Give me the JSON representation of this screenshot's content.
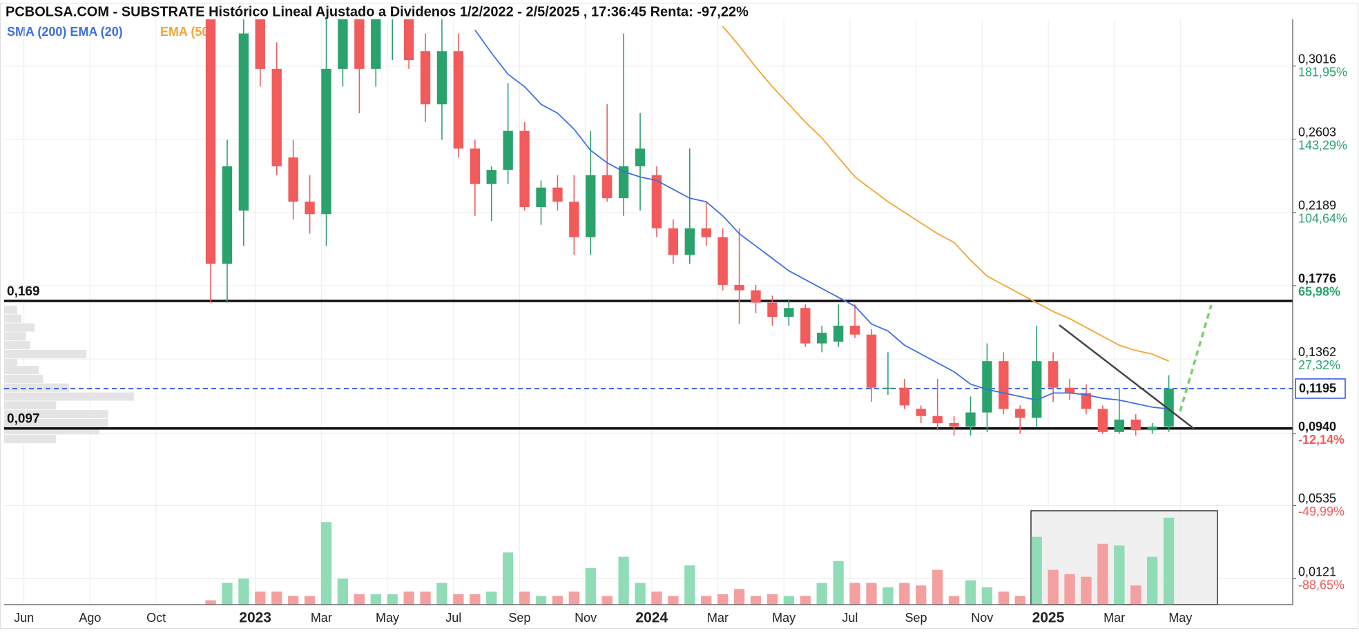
{
  "chart_data": {
    "type": "candlestick",
    "title": "PCBOLSA.COM - SUBSTRATE Histórico Lineal Ajustado a Dividenos 1/2/2022 - 2/5/2025 , 17:36:45 Renta: -97,22%",
    "categories": [
      "Jun",
      null,
      null,
      null,
      "Ago",
      null,
      null,
      null,
      "Oct",
      null,
      null,
      null,
      null,
      null,
      "2023",
      null,
      null,
      null,
      "Mar",
      null,
      null,
      null,
      "May",
      null,
      null,
      null,
      "Jul",
      null,
      null,
      null,
      "Sep",
      null,
      null,
      null,
      "Nov",
      null,
      null,
      null,
      "2024",
      null,
      null,
      null,
      "Mar",
      null,
      null,
      null,
      "May",
      null,
      null,
      null,
      "Jul",
      null,
      null,
      null,
      "Sep",
      null,
      null,
      null,
      "Nov",
      null,
      null,
      null,
      "2025",
      null,
      null,
      null,
      "Mar",
      null,
      null,
      null,
      "May",
      null,
      null,
      null,
      null,
      null,
      null,
      null
    ],
    "open": [
      null,
      null,
      null,
      null,
      null,
      null,
      null,
      null,
      null,
      null,
      null,
      null,
      0.33,
      0.19,
      0.22,
      0.33,
      0.3,
      0.25,
      0.225,
      0.218,
      0.3,
      0.34,
      0.3,
      0.33,
      0.33,
      0.31,
      0.28,
      0.31,
      0.255,
      0.235,
      0.243,
      0.265,
      0.222,
      0.233,
      0.225,
      0.205,
      0.24,
      0.227,
      0.245,
      0.24,
      0.21,
      0.195,
      0.21,
      0.205,
      0.178,
      0.175,
      0.168,
      0.16,
      0.165,
      0.145,
      0.146,
      0.155,
      0.15,
      0.12,
      0.12,
      0.108,
      0.104,
      0.1,
      0.098,
      0.106,
      0.135,
      0.108,
      0.103,
      0.135,
      0.12,
      0.117,
      0.108,
      0.095,
      0.102,
      0.096,
      0.098,
      null,
      null,
      null,
      null,
      null,
      null,
      null
    ],
    "high": [
      null,
      null,
      null,
      null,
      null,
      null,
      null,
      null,
      null,
      null,
      null,
      null,
      0.34,
      0.26,
      0.34,
      0.35,
      0.315,
      0.26,
      0.24,
      0.33,
      0.36,
      0.35,
      0.35,
      0.35,
      0.345,
      0.32,
      0.33,
      0.32,
      0.26,
      0.245,
      0.292,
      0.27,
      0.237,
      0.24,
      0.24,
      0.265,
      0.28,
      0.32,
      0.275,
      0.245,
      0.215,
      0.255,
      0.225,
      0.21,
      0.21,
      0.178,
      0.172,
      0.17,
      0.167,
      0.155,
      0.167,
      0.167,
      0.153,
      0.14,
      0.125,
      0.11,
      0.125,
      0.104,
      0.115,
      0.145,
      0.14,
      0.11,
      0.155,
      0.14,
      0.125,
      0.122,
      0.11,
      0.12,
      0.105,
      0.1,
      0.127,
      null,
      null,
      null,
      null,
      null,
      null,
      null
    ],
    "low": [
      null,
      null,
      null,
      null,
      null,
      null,
      null,
      null,
      null,
      null,
      null,
      null,
      0.168,
      0.168,
      0.2,
      0.29,
      0.24,
      0.215,
      0.207,
      0.2,
      0.29,
      0.275,
      0.29,
      0.305,
      0.3,
      0.27,
      0.26,
      0.25,
      0.217,
      0.214,
      0.235,
      0.22,
      0.212,
      0.22,
      0.195,
      0.195,
      0.225,
      0.217,
      0.22,
      0.205,
      0.19,
      0.19,
      0.2,
      0.175,
      0.156,
      0.162,
      0.155,
      0.155,
      0.143,
      0.14,
      0.143,
      0.148,
      0.112,
      0.116,
      0.108,
      0.1,
      0.096,
      0.093,
      0.093,
      0.095,
      0.105,
      0.094,
      0.098,
      0.112,
      0.113,
      0.105,
      0.094,
      0.094,
      0.093,
      0.094,
      0.095,
      null,
      null,
      null,
      null,
      null,
      null,
      null
    ],
    "close": [
      null,
      null,
      null,
      null,
      null,
      null,
      null,
      null,
      null,
      null,
      null,
      null,
      0.19,
      0.245,
      0.32,
      0.3,
      0.245,
      0.225,
      0.218,
      0.3,
      0.34,
      0.3,
      0.33,
      0.33,
      0.305,
      0.28,
      0.31,
      0.255,
      0.235,
      0.243,
      0.265,
      0.222,
      0.233,
      0.225,
      0.205,
      0.24,
      0.227,
      0.245,
      0.255,
      0.21,
      0.195,
      0.21,
      0.205,
      0.178,
      0.175,
      0.168,
      0.16,
      0.165,
      0.145,
      0.151,
      0.155,
      0.15,
      0.12,
      0.12,
      0.11,
      0.104,
      0.1,
      0.098,
      0.106,
      0.135,
      0.108,
      0.103,
      0.135,
      0.12,
      0.117,
      0.108,
      0.095,
      0.102,
      0.096,
      0.098,
      0.1195,
      null,
      null,
      null,
      null,
      null,
      null,
      null
    ],
    "volume": [
      null,
      null,
      null,
      null,
      null,
      null,
      null,
      null,
      null,
      null,
      null,
      null,
      5,
      25,
      30,
      15,
      15,
      10,
      10,
      95,
      30,
      12,
      12,
      12,
      15,
      15,
      25,
      12,
      12,
      15,
      60,
      15,
      10,
      10,
      15,
      42,
      10,
      55,
      25,
      15,
      10,
      45,
      10,
      12,
      18,
      10,
      12,
      10,
      10,
      25,
      50,
      25,
      25,
      20,
      25,
      22,
      40,
      10,
      28,
      20,
      15,
      10,
      78,
      40,
      35,
      32,
      70,
      68,
      22,
      55,
      100,
      null,
      null,
      null,
      null,
      null,
      null,
      null
    ],
    "volume_ylim": [
      0,
      100
    ],
    "up_color": "#2aa26c",
    "down_color": "#f25b5b",
    "volume_up_color": "#8fdcb6",
    "volume_down_color": "#f4a0a0",
    "series": [
      {
        "name": "SMA (200) EMA (20)",
        "color": "#3b6fe6",
        "values": [
          null,
          null,
          null,
          null,
          null,
          null,
          null,
          null,
          null,
          null,
          null,
          null,
          null,
          null,
          null,
          null,
          null,
          null,
          null,
          null,
          null,
          null,
          null,
          null,
          null,
          null,
          null,
          null,
          0.322,
          0.309,
          0.297,
          0.29,
          0.28,
          0.275,
          0.266,
          0.254,
          0.247,
          0.242,
          0.239,
          0.237,
          0.232,
          0.227,
          0.225,
          0.217,
          0.207,
          0.2,
          0.193,
          0.186,
          0.181,
          0.176,
          0.171,
          0.166,
          0.156,
          0.152,
          0.144,
          0.139,
          0.134,
          0.129,
          0.122,
          0.119,
          0.117,
          0.115,
          0.113,
          0.117,
          0.117,
          0.116,
          0.114,
          0.113,
          0.111,
          0.109,
          0.108,
          null,
          null,
          null,
          null,
          null,
          null,
          null
        ]
      },
      {
        "name": "EMA (50)",
        "color": "#f5a232",
        "values": [
          null,
          null,
          null,
          null,
          null,
          null,
          null,
          null,
          null,
          null,
          null,
          null,
          null,
          null,
          null,
          null,
          null,
          null,
          null,
          null,
          null,
          null,
          null,
          null,
          null,
          null,
          null,
          null,
          null,
          null,
          null,
          null,
          null,
          null,
          null,
          null,
          null,
          null,
          null,
          null,
          null,
          null,
          null,
          0.324,
          0.313,
          0.301,
          0.29,
          0.28,
          0.27,
          0.261,
          0.25,
          0.239,
          0.232,
          0.225,
          0.219,
          0.213,
          0.207,
          0.202,
          0.192,
          0.183,
          0.178,
          0.173,
          0.168,
          0.163,
          0.159,
          0.154,
          0.149,
          0.144,
          0.141,
          0.139,
          0.135,
          null,
          null,
          null,
          null,
          null,
          null,
          null
        ]
      }
    ],
    "ylim": [
      -0.0025,
      0.328
    ],
    "yticks": [
      {
        "value": 0.3016,
        "label": "0,3016"
      },
      {
        "value": 0.2603,
        "label": "0,2603"
      },
      {
        "value": 0.2189,
        "label": "0,2189"
      },
      {
        "value": 0.1776,
        "label": "0,1776",
        "bold": true
      },
      {
        "value": 0.1362,
        "label": "0,1362"
      },
      {
        "value": 0.094,
        "label": "0,0940",
        "bold": true
      },
      {
        "value": 0.0535,
        "label": "0,0535"
      },
      {
        "value": 0.0121,
        "label": "0,0121"
      }
    ],
    "y_pct_ticks": [
      {
        "value": 181.95,
        "label": "181,95%"
      },
      {
        "value": 143.29,
        "label": "143,29%"
      },
      {
        "value": 104.64,
        "label": "104,64%"
      },
      {
        "value": 65.98,
        "label": "65,98%"
      },
      {
        "value": 27.32,
        "label": "27,32%"
      },
      {
        "value": -12.14,
        "label": "-12,14%"
      },
      {
        "value": -49.99,
        "label": "-49,99%"
      },
      {
        "value": -88.65,
        "label": "-88,65%"
      }
    ],
    "levels": [
      {
        "value": 0.169,
        "label": "0,169"
      },
      {
        "value": 0.097,
        "label": "0,097"
      }
    ],
    "current_price": {
      "value": 0.1195,
      "label": "0,1195",
      "color": "#2d4fe0"
    },
    "volume_profile": {
      "color": "#e4e4e4",
      "levels": [
        0.164,
        0.159,
        0.154,
        0.149,
        0.144,
        0.139,
        0.134,
        0.13,
        0.125,
        0.12,
        0.115,
        0.11,
        0.105,
        0.1,
        0.096,
        0.091
      ],
      "values": [
        15,
        20,
        35,
        25,
        30,
        95,
        15,
        40,
        45,
        75,
        150,
        60,
        120,
        120,
        110,
        60
      ]
    },
    "grid": true
  }
}
